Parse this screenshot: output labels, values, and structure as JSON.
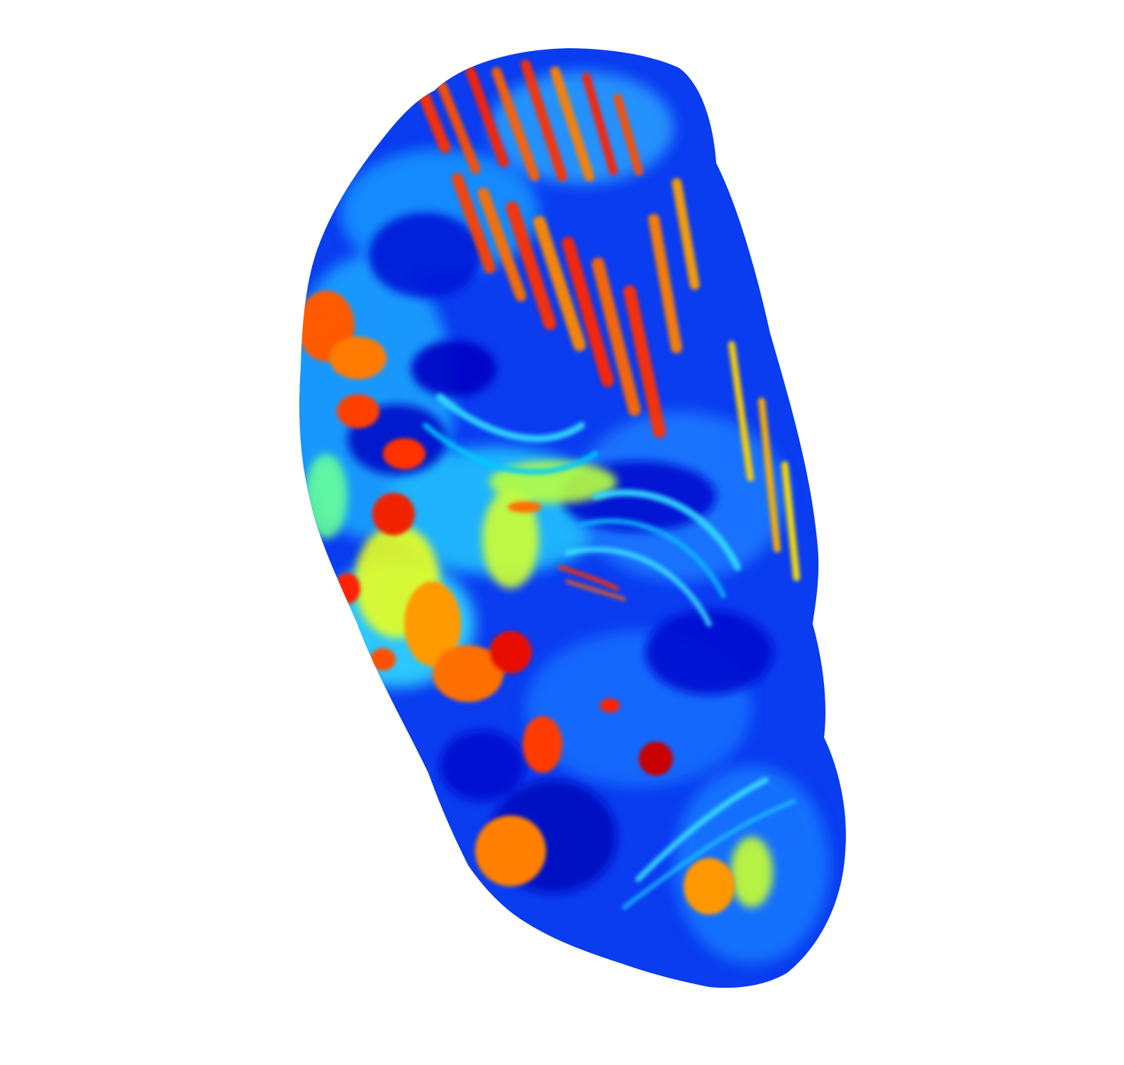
{
  "figure": {
    "type": "surface-colormap-render",
    "colormap": "jet",
    "background": "#ffffff",
    "colormap_stops": [
      "#00008f",
      "#0000ff",
      "#0080ff",
      "#00ffff",
      "#80ff80",
      "#ffff00",
      "#ff8000",
      "#ff0000",
      "#800000"
    ]
  }
}
